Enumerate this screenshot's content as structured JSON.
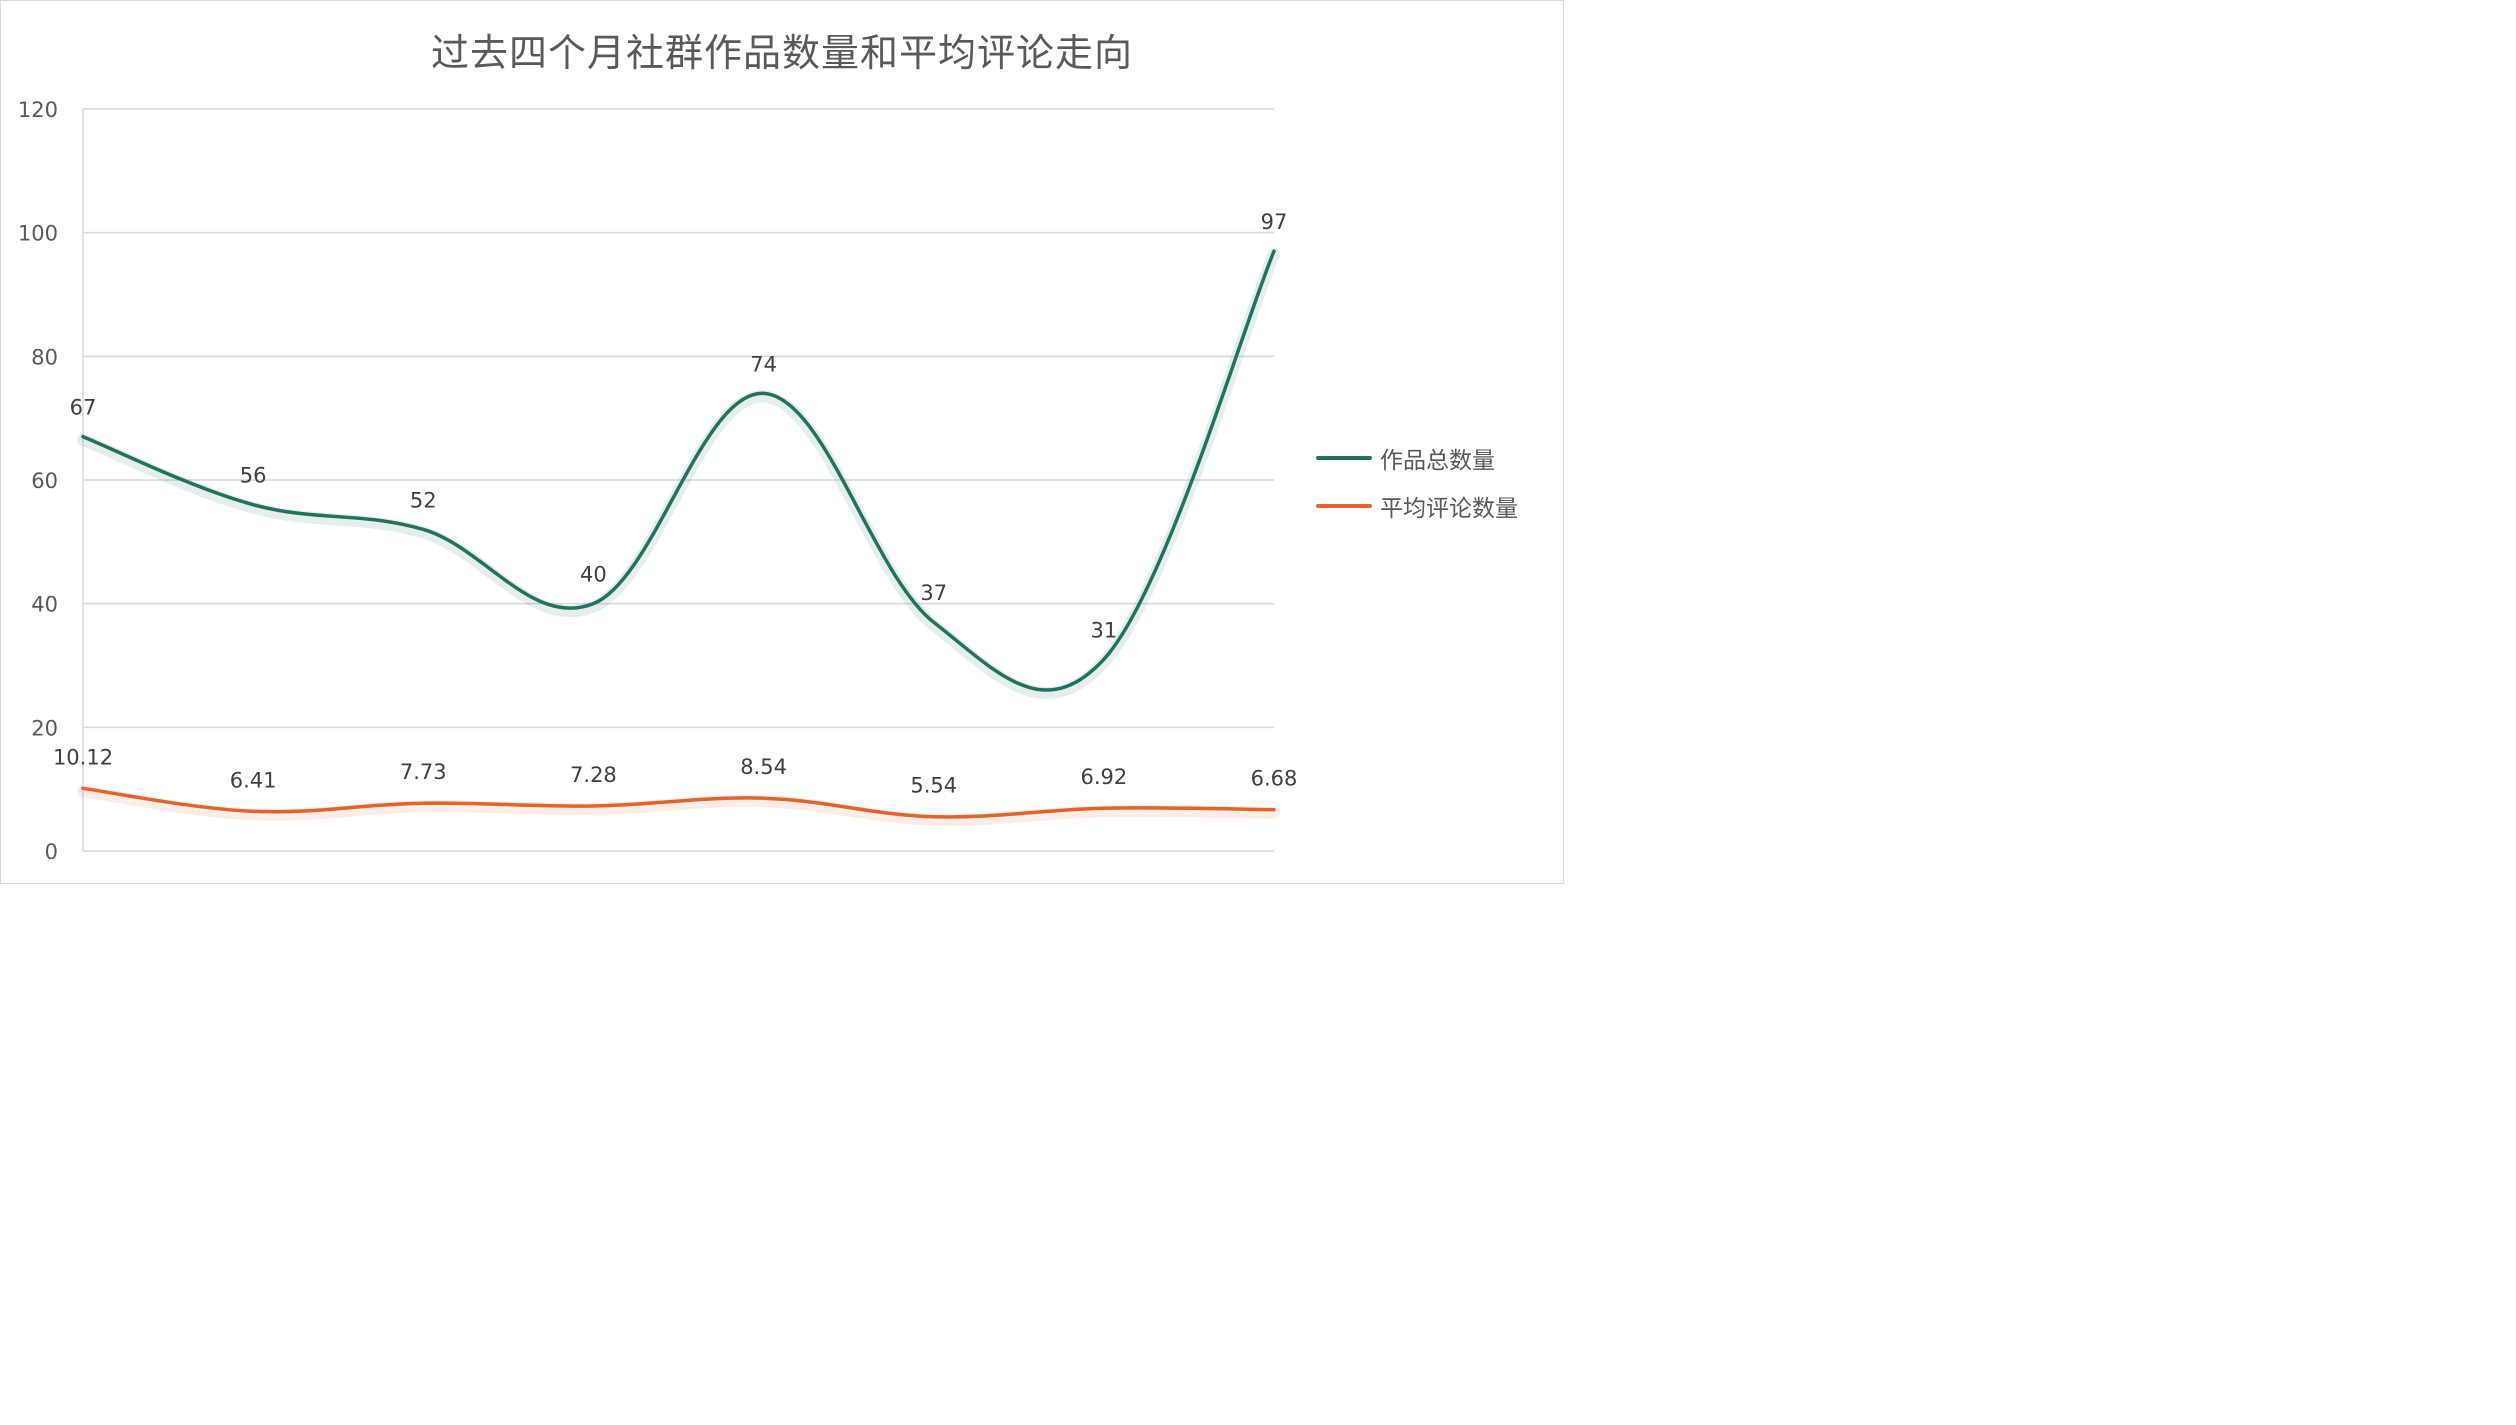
{
  "chart_data": {
    "type": "line",
    "title": "过去四个月社群作品数量和平均评论走向",
    "xlabel": "",
    "ylabel": "",
    "ylim": [
      0,
      120
    ],
    "yticks": [
      0,
      20,
      40,
      60,
      80,
      100,
      120
    ],
    "grid": true,
    "smooth": true,
    "legend_position": "right",
    "series": [
      {
        "name": "作品总数量",
        "color": "#23705F",
        "values": [
          67,
          56,
          52,
          40,
          74,
          37,
          31,
          97
        ],
        "labels": [
          "67",
          "56",
          "52",
          "40",
          "74",
          "37",
          "31",
          "97"
        ]
      },
      {
        "name": "平均评论数量",
        "color": "#E06430",
        "values": [
          10.12,
          6.41,
          7.73,
          7.28,
          8.54,
          5.54,
          6.92,
          6.68
        ],
        "labels": [
          "10.12",
          "6.41",
          "7.73",
          "7.28",
          "8.54",
          "5.54",
          "6.92",
          "6.68"
        ]
      }
    ]
  }
}
